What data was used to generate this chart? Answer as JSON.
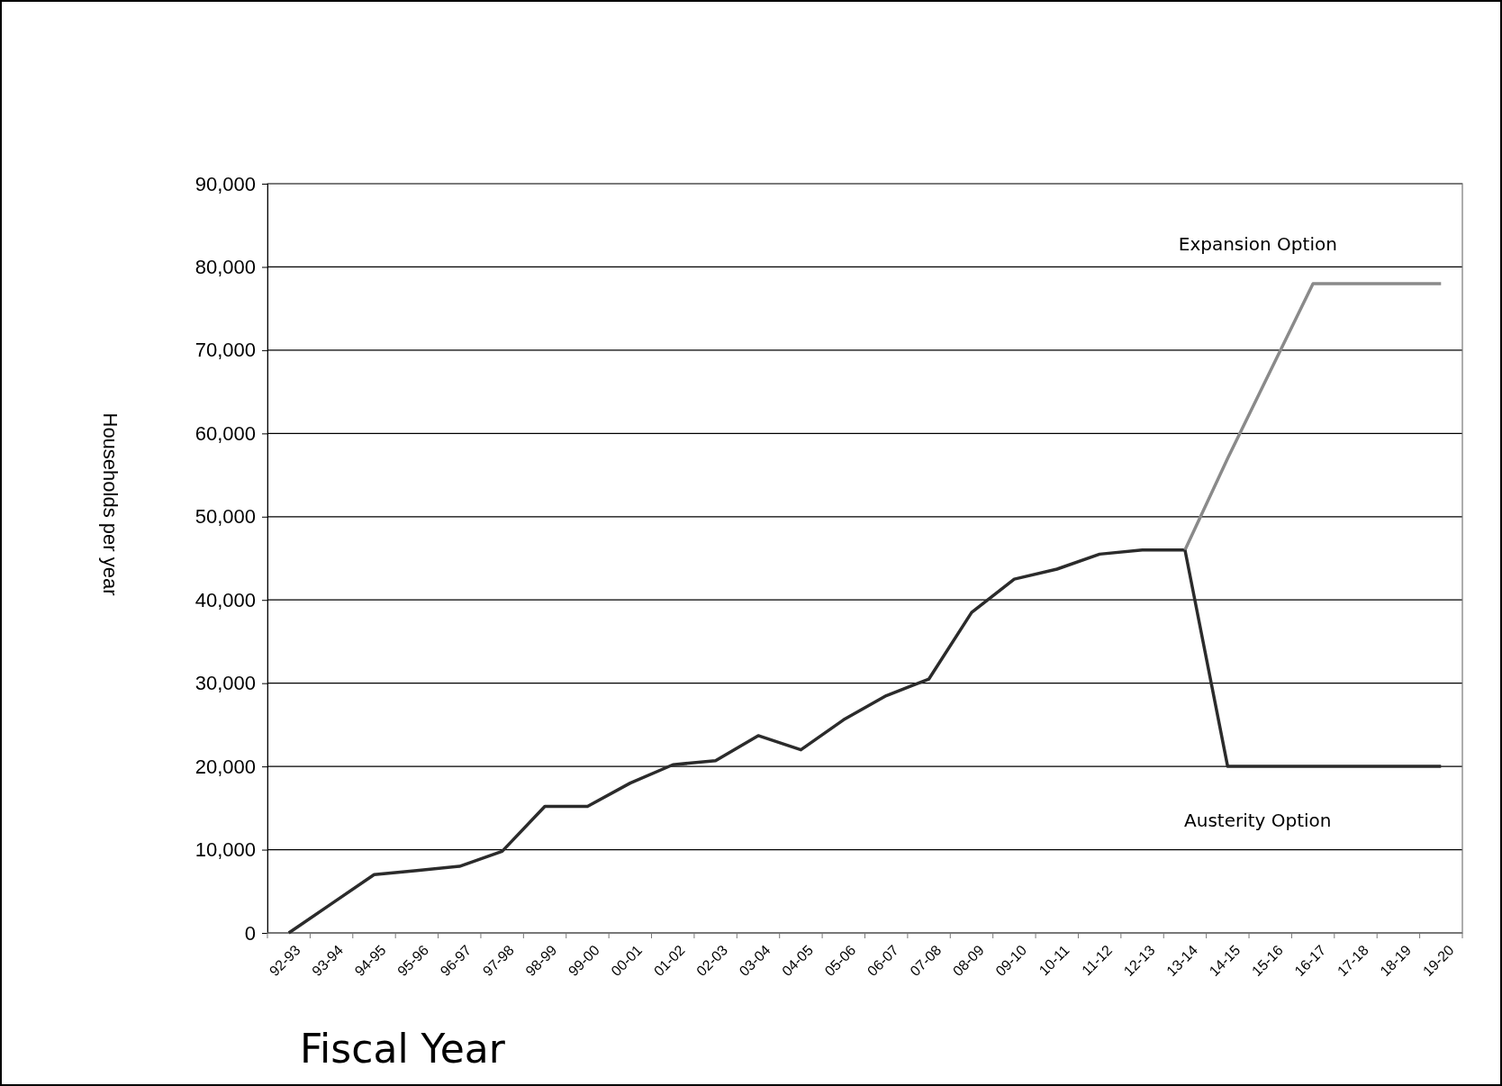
{
  "chart_data": {
    "type": "line",
    "xlabel": "Fiscal Year",
    "ylabel": "Households per year",
    "categories": [
      "92-93",
      "93-94",
      "94-95",
      "95-96",
      "96-97",
      "97-98",
      "98-99",
      "99-00",
      "00-01",
      "01-02",
      "02-03",
      "03-04",
      "04-05",
      "05-06",
      "06-07",
      "07-08",
      "08-09",
      "09-10",
      "10-11",
      "11-12",
      "12-13",
      "13-14",
      "14-15",
      "15-16",
      "16-17",
      "17-18",
      "18-19",
      "19-20"
    ],
    "series": [
      {
        "color": "#2b2b2b",
        "values": [
          0,
          3500,
          7000,
          7500,
          8000,
          9800,
          15200,
          15200,
          18000,
          20200,
          20700,
          23700,
          22000,
          25600,
          28500,
          30500,
          38500,
          42500,
          43700,
          45500,
          46000,
          46000,
          null,
          null,
          null,
          null,
          null,
          null
        ]
      },
      {
        "name": "Expansion Option",
        "color": "#8a8a8a",
        "values": [
          null,
          null,
          null,
          null,
          null,
          null,
          null,
          null,
          null,
          null,
          null,
          null,
          null,
          null,
          null,
          null,
          null,
          null,
          null,
          null,
          null,
          46000,
          57000,
          67500,
          78000,
          78000,
          78000,
          78000
        ]
      },
      {
        "name": "Austerity Option",
        "color": "#2b2b2b",
        "values": [
          null,
          null,
          null,
          null,
          null,
          null,
          null,
          null,
          null,
          null,
          null,
          null,
          null,
          null,
          null,
          null,
          null,
          null,
          null,
          null,
          null,
          46000,
          20000,
          20000,
          20000,
          20000,
          20000,
          20000
        ]
      }
    ],
    "ylim": [
      0,
      90000
    ],
    "yticks": [
      {
        "value": 0,
        "label": "0"
      },
      {
        "value": 10000,
        "label": "10,000"
      },
      {
        "value": 20000,
        "label": "20,000"
      },
      {
        "value": 30000,
        "label": "30,000"
      },
      {
        "value": 40000,
        "label": "40,000"
      },
      {
        "value": 50000,
        "label": "50,000"
      },
      {
        "value": 60000,
        "label": "60,000"
      },
      {
        "value": 70000,
        "label": "70,000"
      },
      {
        "value": 80000,
        "label": "80,000"
      },
      {
        "value": 90000,
        "label": "90,000"
      }
    ],
    "grid": "y",
    "marker": "none",
    "line_style": "solid"
  }
}
